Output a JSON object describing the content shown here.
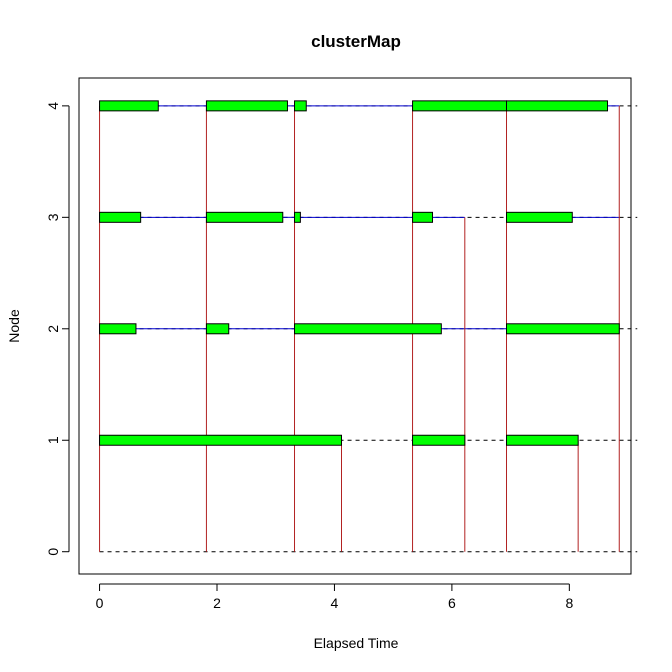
{
  "chart_data": {
    "type": "cluster-timeline",
    "title": "clusterMap",
    "xlabel": "Elapsed Time",
    "ylabel": "Node",
    "xlim": [
      -0.35,
      9.05
    ],
    "ylim": [
      -0.2,
      4.25
    ],
    "x_ticks": [
      0,
      2,
      4,
      6,
      8
    ],
    "y_ticks": [
      0,
      1,
      2,
      3,
      4
    ],
    "colors": {
      "busy": "#00ff00",
      "idle_line": "#0000cd",
      "sync_line": "#b22222",
      "grid": "#000000"
    },
    "nodes": [
      {
        "node": 1,
        "busy": [
          [
            0,
            4.12
          ],
          [
            5.33,
            6.22
          ],
          [
            6.93,
            8.15
          ]
        ],
        "idle": []
      },
      {
        "node": 2,
        "busy": [
          [
            0,
            0.62
          ],
          [
            1.82,
            2.2
          ],
          [
            3.32,
            5.82
          ],
          [
            6.93,
            8.85
          ]
        ],
        "idle": [
          [
            0.62,
            1.82
          ],
          [
            2.2,
            3.32
          ],
          [
            5.82,
            6.93
          ]
        ]
      },
      {
        "node": 3,
        "busy": [
          [
            0,
            0.7
          ],
          [
            1.82,
            3.12
          ],
          [
            3.32,
            3.42
          ],
          [
            5.33,
            5.67
          ],
          [
            6.93,
            8.05
          ]
        ],
        "idle": [
          [
            0.7,
            1.82
          ],
          [
            3.12,
            3.32
          ],
          [
            3.42,
            5.33
          ],
          [
            5.67,
            6.22
          ],
          [
            8.05,
            8.85
          ]
        ]
      },
      {
        "node": 4,
        "busy": [
          [
            0,
            1.0
          ],
          [
            1.82,
            3.2
          ],
          [
            3.32,
            3.52
          ],
          [
            5.33,
            6.93
          ],
          [
            6.93,
            8.65
          ]
        ],
        "idle": [
          [
            1.0,
            1.82
          ],
          [
            3.2,
            3.32
          ],
          [
            3.52,
            5.33
          ],
          [
            8.65,
            8.85
          ]
        ]
      }
    ],
    "sync_lines": [
      {
        "x": 0,
        "y0": 0,
        "y1": 4
      },
      {
        "x": 1.82,
        "y0": 0,
        "y1": 4
      },
      {
        "x": 3.32,
        "y0": 0,
        "y1": 4
      },
      {
        "x": 4.12,
        "y0": 0,
        "y1": 1
      },
      {
        "x": 5.33,
        "y0": 0,
        "y1": 4
      },
      {
        "x": 6.22,
        "y0": 0,
        "y1": 3
      },
      {
        "x": 6.93,
        "y0": 0,
        "y1": 4
      },
      {
        "x": 8.15,
        "y0": 0,
        "y1": 1
      },
      {
        "x": 8.85,
        "y0": 0,
        "y1": 4
      }
    ]
  }
}
